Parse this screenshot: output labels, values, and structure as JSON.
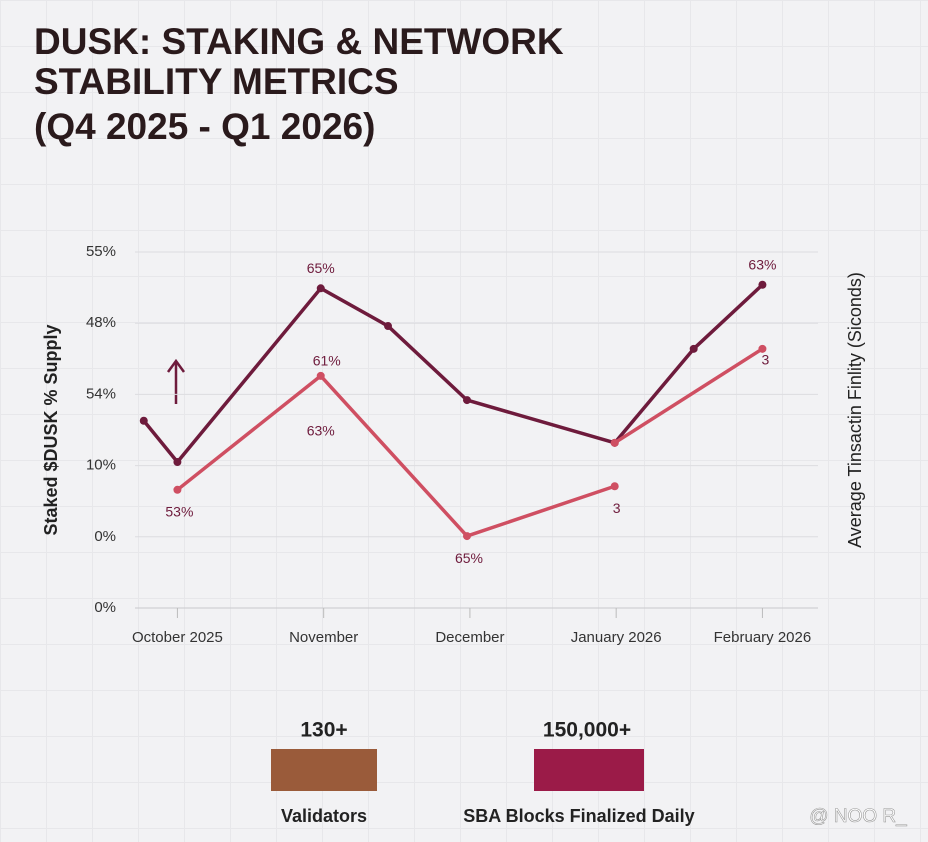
{
  "title_lines": [
    "DUSK: STAKING & NETWORK",
    "STABILITY METRICS",
    "(Q4 2025 - Q1 2026)"
  ],
  "chart_data": {
    "type": "line",
    "y_label": "Staked $DUSK % Supply",
    "y2_label": "Average Tinsactin Finlity (Siconds)",
    "xlim": [
      -0.29,
      4.38
    ],
    "xticks": [
      {
        "value": 0,
        "label": "October 2025"
      },
      {
        "value": 1,
        "label": "November"
      },
      {
        "value": 2,
        "label": "December"
      },
      {
        "value": 3,
        "label": "January 2026"
      },
      {
        "value": 4,
        "label": "February 2026"
      }
    ],
    "ylim": [
      0,
      5
    ],
    "yticks": [
      {
        "value": 0,
        "label": "0%"
      },
      {
        "value": 1,
        "label": "0%"
      },
      {
        "value": 2,
        "label": "10%"
      },
      {
        "value": 3,
        "label": "54%"
      },
      {
        "value": 4,
        "label": "48%"
      },
      {
        "value": 5,
        "label": "55%"
      }
    ],
    "grid": true,
    "series": [
      {
        "color": "#6e1b3c",
        "x": [
          -0.23,
          0,
          0.98,
          1.44,
          1.98,
          2.99,
          3.53,
          4.0
        ],
        "values": [
          2.63,
          2.05,
          4.49,
          3.96,
          2.92,
          2.32,
          3.64,
          4.54
        ],
        "point_labels": [
          null,
          null,
          [
            "65%"
          ],
          null,
          null,
          null,
          null,
          [
            "63%"
          ]
        ]
      },
      {
        "color": "#cf4f62",
        "x": [
          0,
          0.98,
          1.98,
          2.99,
          null,
          2.99,
          4.0
        ],
        "values": [
          1.66,
          3.26,
          1.01,
          1.71,
          null,
          2.32,
          3.64
        ],
        "point_labels": [
          [
            "53%"
          ],
          [
            "61%",
            "63%"
          ],
          [
            "65%"
          ],
          [
            "3"
          ],
          null,
          null,
          [
            "3"
          ]
        ]
      }
    ]
  },
  "stats": [
    {
      "value": "130+",
      "label": "Validators",
      "color": "#9a5b3a"
    },
    {
      "value": "150,000+",
      "label": "SBA Blocks Finalized Daily",
      "color": "#9b1b48"
    }
  ],
  "watermark": "@ NOO R_"
}
